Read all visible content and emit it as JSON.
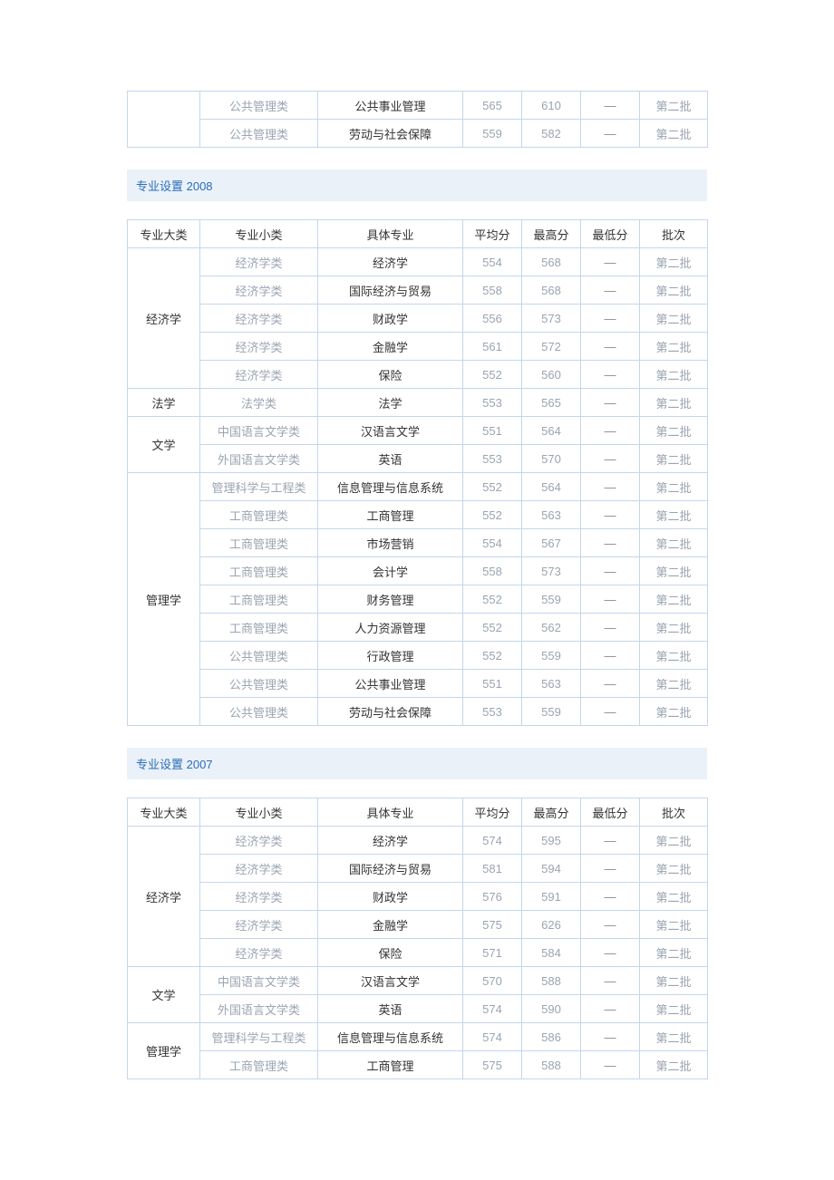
{
  "columns": {
    "major": "专业大类",
    "minor": "专业小类",
    "spec": "具体专业",
    "avg": "平均分",
    "max": "最高分",
    "min": "最低分",
    "batch": "批次"
  },
  "dash": "—",
  "section_titles": {
    "y2008": "专业设置 2008",
    "y2007": "专业设置 2007"
  },
  "fragment_top": {
    "rows": [
      {
        "minor": "公共管理类",
        "spec": "公共事业管理",
        "avg": "565",
        "max": "610",
        "batch": "第二批"
      },
      {
        "minor": "公共管理类",
        "spec": "劳动与社会保障",
        "avg": "559",
        "max": "582",
        "batch": "第二批"
      }
    ]
  },
  "table2008": {
    "groups": [
      {
        "major": "经济学",
        "rows": [
          {
            "minor": "经济学类",
            "spec": "经济学",
            "avg": "554",
            "max": "568",
            "batch": "第二批"
          },
          {
            "minor": "经济学类",
            "spec": "国际经济与贸易",
            "avg": "558",
            "max": "568",
            "batch": "第二批"
          },
          {
            "minor": "经济学类",
            "spec": "财政学",
            "avg": "556",
            "max": "573",
            "batch": "第二批"
          },
          {
            "minor": "经济学类",
            "spec": "金融学",
            "avg": "561",
            "max": "572",
            "batch": "第二批"
          },
          {
            "minor": "经济学类",
            "spec": "保险",
            "avg": "552",
            "max": "560",
            "batch": "第二批"
          }
        ]
      },
      {
        "major": "法学",
        "rows": [
          {
            "minor": "法学类",
            "spec": "法学",
            "avg": "553",
            "max": "565",
            "batch": "第二批"
          }
        ]
      },
      {
        "major": "文学",
        "rows": [
          {
            "minor": "中国语言文学类",
            "spec": "汉语言文学",
            "avg": "551",
            "max": "564",
            "batch": "第二批"
          },
          {
            "minor": "外国语言文学类",
            "spec": "英语",
            "avg": "553",
            "max": "570",
            "batch": "第二批"
          }
        ]
      },
      {
        "major": "管理学",
        "rows": [
          {
            "minor": "管理科学与工程类",
            "spec": "信息管理与信息系统",
            "avg": "552",
            "max": "564",
            "batch": "第二批"
          },
          {
            "minor": "工商管理类",
            "spec": "工商管理",
            "avg": "552",
            "max": "563",
            "batch": "第二批"
          },
          {
            "minor": "工商管理类",
            "spec": "市场营销",
            "avg": "554",
            "max": "567",
            "batch": "第二批"
          },
          {
            "minor": "工商管理类",
            "spec": "会计学",
            "avg": "558",
            "max": "573",
            "batch": "第二批"
          },
          {
            "minor": "工商管理类",
            "spec": "财务管理",
            "avg": "552",
            "max": "559",
            "batch": "第二批"
          },
          {
            "minor": "工商管理类",
            "spec": "人力资源管理",
            "avg": "552",
            "max": "562",
            "batch": "第二批"
          },
          {
            "minor": "公共管理类",
            "spec": "行政管理",
            "avg": "552",
            "max": "559",
            "batch": "第二批"
          },
          {
            "minor": "公共管理类",
            "spec": "公共事业管理",
            "avg": "551",
            "max": "563",
            "batch": "第二批"
          },
          {
            "minor": "公共管理类",
            "spec": "劳动与社会保障",
            "avg": "553",
            "max": "559",
            "batch": "第二批"
          }
        ]
      }
    ]
  },
  "table2007": {
    "groups": [
      {
        "major": "经济学",
        "rows": [
          {
            "minor": "经济学类",
            "spec": "经济学",
            "avg": "574",
            "max": "595",
            "batch": "第二批"
          },
          {
            "minor": "经济学类",
            "spec": "国际经济与贸易",
            "avg": "581",
            "max": "594",
            "batch": "第二批"
          },
          {
            "minor": "经济学类",
            "spec": "财政学",
            "avg": "576",
            "max": "591",
            "batch": "第二批"
          },
          {
            "minor": "经济学类",
            "spec": "金融学",
            "avg": "575",
            "max": "626",
            "batch": "第二批"
          },
          {
            "minor": "经济学类",
            "spec": "保险",
            "avg": "571",
            "max": "584",
            "batch": "第二批"
          }
        ]
      },
      {
        "major": "文学",
        "rows": [
          {
            "minor": "中国语言文学类",
            "spec": "汉语言文学",
            "avg": "570",
            "max": "588",
            "batch": "第二批"
          },
          {
            "minor": "外国语言文学类",
            "spec": "英语",
            "avg": "574",
            "max": "590",
            "batch": "第二批"
          }
        ]
      },
      {
        "major": "管理学",
        "rows": [
          {
            "minor": "管理科学与工程类",
            "spec": "信息管理与信息系统",
            "avg": "574",
            "max": "586",
            "batch": "第二批"
          },
          {
            "minor": "工商管理类",
            "spec": "工商管理",
            "avg": "575",
            "max": "588",
            "batch": "第二批"
          }
        ]
      }
    ]
  }
}
